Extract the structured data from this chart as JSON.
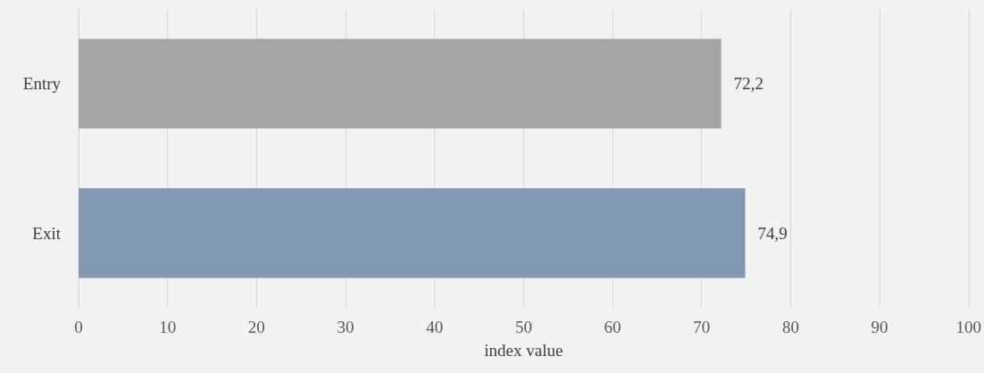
{
  "chart_data": {
    "type": "bar",
    "orientation": "horizontal",
    "xlabel": "index value",
    "categories": [
      "Entry",
      "Exit"
    ],
    "values": [
      72.2,
      74.9
    ],
    "colors": [
      "#a5a5a5",
      "#8497b0"
    ],
    "value_labels": [
      "72,2",
      "74,9"
    ],
    "xlim": [
      0,
      100
    ],
    "xticks": [
      0,
      10,
      20,
      30,
      40,
      50,
      60,
      70,
      80,
      90,
      100
    ],
    "grid": "x"
  }
}
